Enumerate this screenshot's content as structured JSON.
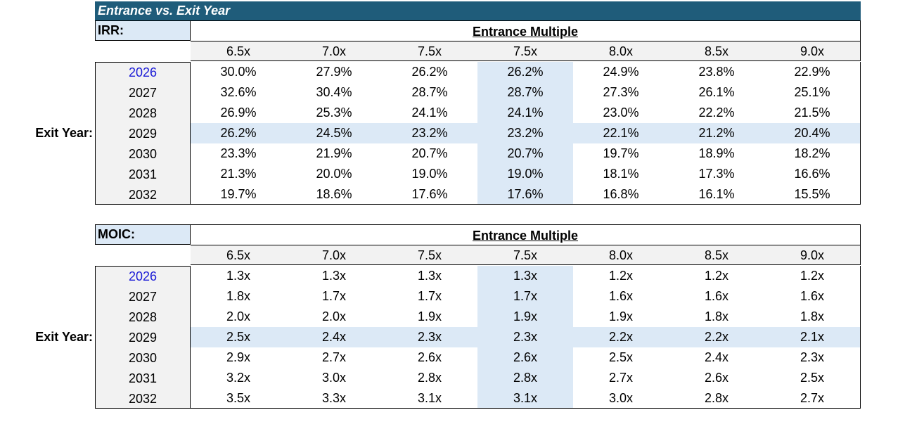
{
  "title": "Entrance vs. Exit Year",
  "exit_label": "Exit Year:",
  "irr": {
    "label": "IRR:",
    "header": "Entrance Multiple",
    "columns": [
      "6.5x",
      "7.0x",
      "7.5x",
      "7.5x",
      "8.0x",
      "8.5x",
      "9.0x"
    ],
    "years": [
      "2026",
      "2027",
      "2028",
      "2029",
      "2030",
      "2031",
      "2032"
    ],
    "rows": [
      [
        "30.0%",
        "27.9%",
        "26.2%",
        "26.2%",
        "24.9%",
        "23.8%",
        "22.9%"
      ],
      [
        "32.6%",
        "30.4%",
        "28.7%",
        "28.7%",
        "27.3%",
        "26.1%",
        "25.1%"
      ],
      [
        "26.9%",
        "25.3%",
        "24.1%",
        "24.1%",
        "23.0%",
        "22.2%",
        "21.5%"
      ],
      [
        "26.2%",
        "24.5%",
        "23.2%",
        "23.2%",
        "22.1%",
        "21.2%",
        "20.4%"
      ],
      [
        "23.3%",
        "21.9%",
        "20.7%",
        "20.7%",
        "19.7%",
        "18.9%",
        "18.2%"
      ],
      [
        "21.3%",
        "20.0%",
        "19.0%",
        "19.0%",
        "18.1%",
        "17.3%",
        "16.6%"
      ],
      [
        "19.7%",
        "18.6%",
        "17.6%",
        "17.6%",
        "16.8%",
        "16.1%",
        "15.5%"
      ]
    ]
  },
  "moic": {
    "label": "MOIC:",
    "header": "Entrance Multiple",
    "columns": [
      "6.5x",
      "7.0x",
      "7.5x",
      "7.5x",
      "8.0x",
      "8.5x",
      "9.0x"
    ],
    "years": [
      "2026",
      "2027",
      "2028",
      "2029",
      "2030",
      "2031",
      "2032"
    ],
    "rows": [
      [
        "1.3x",
        "1.3x",
        "1.3x",
        "1.3x",
        "1.2x",
        "1.2x",
        "1.2x"
      ],
      [
        "1.8x",
        "1.7x",
        "1.7x",
        "1.7x",
        "1.6x",
        "1.6x",
        "1.6x"
      ],
      [
        "2.0x",
        "2.0x",
        "1.9x",
        "1.9x",
        "1.9x",
        "1.8x",
        "1.8x"
      ],
      [
        "2.5x",
        "2.4x",
        "2.3x",
        "2.3x",
        "2.2x",
        "2.2x",
        "2.1x"
      ],
      [
        "2.9x",
        "2.7x",
        "2.6x",
        "2.6x",
        "2.5x",
        "2.4x",
        "2.3x"
      ],
      [
        "3.2x",
        "3.0x",
        "2.8x",
        "2.8x",
        "2.7x",
        "2.6x",
        "2.5x"
      ],
      [
        "3.5x",
        "3.3x",
        "3.1x",
        "3.1x",
        "3.0x",
        "2.8x",
        "2.7x"
      ]
    ]
  },
  "colors": {
    "title_bar": "#1f5c7a",
    "highlight": "#dce9f6",
    "header_fill": "#f2f2f2",
    "input_year": "#1a1ad6"
  }
}
